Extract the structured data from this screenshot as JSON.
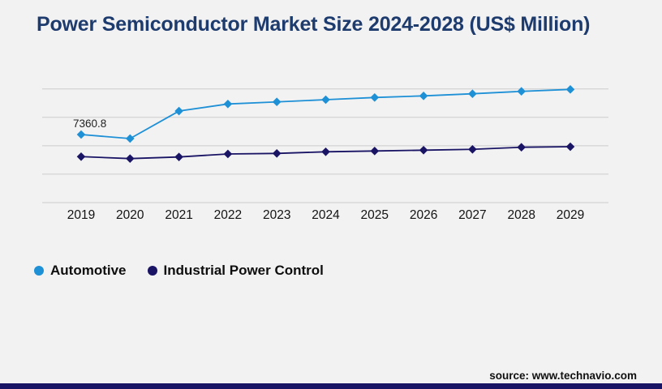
{
  "header": {
    "title": "Power Semiconductor Market Size 2024-2028 (US$ Million)"
  },
  "chart_data": {
    "type": "line",
    "title": "Power Semiconductor Market Size 2024-2028 (US$ Million)",
    "x": [
      2019,
      2020,
      2021,
      2022,
      2023,
      2024,
      2025,
      2026,
      2027,
      2028,
      2029
    ],
    "series": [
      {
        "name": "Automotive",
        "color": "#1e90d6",
        "marker": "diamond",
        "values": [
          7360.8,
          6925,
          9900,
          10665,
          10890,
          11130,
          11365,
          11540,
          11770,
          12030,
          12240
        ]
      },
      {
        "name": "Industrial Power Control",
        "color": "#1a1464",
        "marker": "diamond",
        "values": [
          4970,
          4760,
          4935,
          5260,
          5320,
          5495,
          5580,
          5670,
          5760,
          5985,
          6045
        ]
      }
    ],
    "annotations": [
      {
        "series_index": 0,
        "point_index": 0,
        "label": "7360.8"
      }
    ],
    "ylim": [
      0,
      12295
    ],
    "grid": "horizontal",
    "gridline_count": 5,
    "gridline_color": "#cccccc",
    "y_axis_labels_visible": false,
    "tick_label_color": "#131313",
    "legend_position": "bottom-left"
  },
  "footer": {
    "source": "source: www.technavio.com"
  }
}
